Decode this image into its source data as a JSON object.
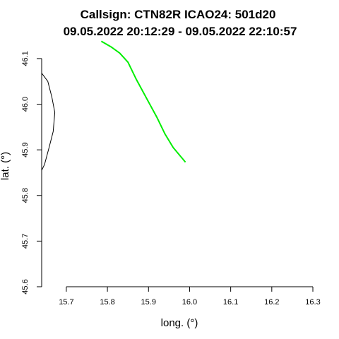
{
  "chart_data": {
    "type": "line",
    "title_line1": "Callsign: CTN82R   ICAO24: 501d20",
    "title_line2": "09.05.2022 20:12:29 - 09.05.2022 22:10:57",
    "xlabel": "long. (°)",
    "ylabel": "lat. (°)",
    "xlim": [
      15.64,
      16.3
    ],
    "ylim": [
      45.6,
      46.12
    ],
    "xticks": [
      "15.7",
      "15.8",
      "15.9",
      "16.0",
      "16.1",
      "16.2",
      "16.3"
    ],
    "yticks": [
      "45.6",
      "45.7",
      "45.8",
      "45.9",
      "46.0",
      "46.1"
    ],
    "series": [
      {
        "color": "#00ee00",
        "x": [
          15.785,
          15.81,
          15.83,
          15.85,
          15.87,
          15.9,
          15.92,
          15.94,
          15.96,
          15.99
        ],
        "y": [
          46.138,
          46.125,
          46.112,
          46.092,
          46.055,
          46.005,
          45.972,
          45.935,
          45.905,
          45.873
        ]
      },
      {
        "color": "#000000",
        "x": [
          15.64,
          15.655,
          15.665,
          15.672,
          15.668,
          15.658,
          15.647,
          15.64
        ],
        "y": [
          46.068,
          46.05,
          46.015,
          45.982,
          45.94,
          45.905,
          45.868,
          45.855
        ]
      }
    ]
  }
}
